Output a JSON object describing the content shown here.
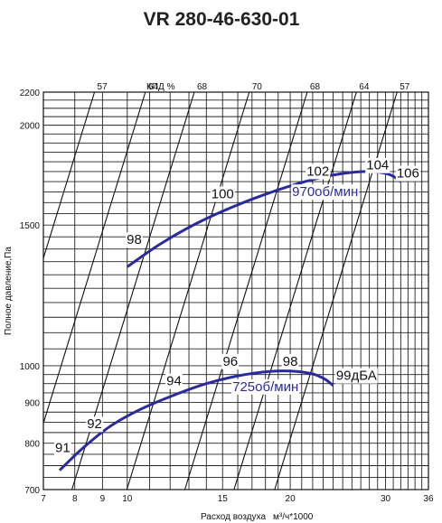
{
  "chart_data": {
    "type": "line",
    "title": "VR 280-46-630-01",
    "xlabel": "Расход воздуха",
    "xunit": "м³/ч*1000",
    "ylabel": "Полное давление,Па",
    "x_scale": "log",
    "y_scale": "log",
    "xlim": [
      7,
      36
    ],
    "ylim": [
      700,
      2200
    ],
    "x_ticks": [
      7,
      8,
      9,
      10,
      15,
      20,
      30,
      36
    ],
    "y_ticks": [
      700,
      800,
      900,
      1000,
      1500,
      2000,
      2200
    ],
    "efficiency_label": "КПД %",
    "efficiency_values": [
      "57",
      "64",
      "68",
      "70",
      "68",
      "64",
      "57"
    ],
    "grid": true,
    "series": [
      {
        "name": "970об/мин",
        "color": "#2a2aa0",
        "x": [
          10.0,
          11.5,
          13.5,
          16.0,
          19.0,
          22.0,
          25.0,
          28.0,
          30.5,
          32.0
        ],
        "y": [
          1330,
          1420,
          1510,
          1590,
          1660,
          1710,
          1740,
          1750,
          1735,
          1700
        ]
      },
      {
        "name": "725об/мин",
        "color": "#2a2aa0",
        "x": [
          7.5,
          8.3,
          9.3,
          10.5,
          12.0,
          14.0,
          16.5,
          19.0,
          21.5,
          23.0,
          24.0
        ],
        "y": [
          740,
          790,
          840,
          880,
          915,
          950,
          975,
          985,
          980,
          965,
          945
        ]
      }
    ],
    "noise_labels": {
      "upper": [
        {
          "text": "98",
          "x": 10.3,
          "y": 1420
        },
        {
          "text": "100",
          "x": 15.0,
          "y": 1620
        },
        {
          "text": "102",
          "x": 22.5,
          "y": 1730
        },
        {
          "text": "104",
          "x": 29.0,
          "y": 1760
        },
        {
          "text": "106",
          "x": 33.0,
          "y": 1720
        }
      ],
      "lower": [
        {
          "text": "91",
          "x": 7.6,
          "y": 780
        },
        {
          "text": "92",
          "x": 8.7,
          "y": 835
        },
        {
          "text": "94",
          "x": 12.2,
          "y": 945
        },
        {
          "text": "96",
          "x": 15.5,
          "y": 1000
        },
        {
          "text": "98",
          "x": 20.0,
          "y": 1000
        },
        {
          "text": "99дБА",
          "x": 26.5,
          "y": 960
        }
      ]
    }
  }
}
